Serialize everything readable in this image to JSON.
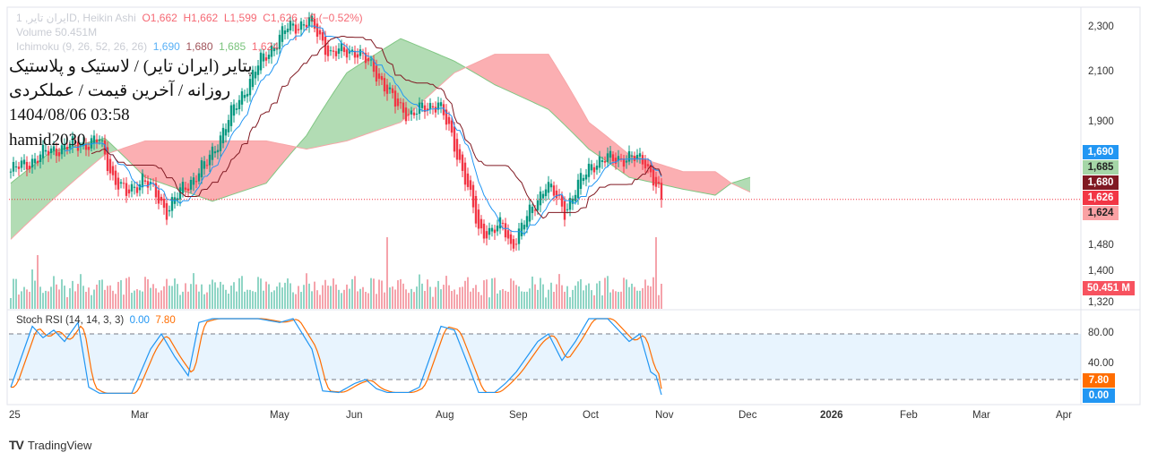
{
  "legend": {
    "symbol_line": "1 ,ایران تایرD, Heikin Ashi",
    "open": "O1,662",
    "high": "H1,662",
    "low": "L1,599",
    "close": "C1,626",
    "change": "−9 (−0.52%)",
    "volume_line": "Volume 50.451M",
    "ichimoku_line": "Ichimoku (9, 26, 52, 26, 26)",
    "ichimoku_values": [
      "1,690",
      "1,680",
      "1,685",
      "1,624"
    ]
  },
  "overlay": {
    "title": "پتایر (ایران تایر) / لاستیک و پلاستیک",
    "subtitle": "روزانه / آخرین قیمت / عملکردی",
    "datetime": "1404/08/06 03:58",
    "author": "hamid2030"
  },
  "price_axis": [
    "2,300",
    "2,100",
    "1,900",
    "1,480",
    "1,400",
    "1,320"
  ],
  "price_tags": [
    {
      "text": "1,690",
      "bg": "#2196f3",
      "fg": "#ffffff"
    },
    {
      "text": "1,685",
      "bg": "#a5d6a7",
      "fg": "#222222"
    },
    {
      "text": "1,680",
      "bg": "#801922",
      "fg": "#ffffff"
    },
    {
      "text": "1,626",
      "bg": "#f23645",
      "fg": "#ffffff"
    },
    {
      "text": "1,624",
      "bg": "#faa1a4",
      "fg": "#222222"
    }
  ],
  "volume_tag": "50.451 M",
  "stoch": {
    "title": "Stoch RSI (14, 14, 3, 3)",
    "k": "0.00",
    "d": "7.80",
    "axis": [
      "80.00",
      "40.00"
    ]
  },
  "time_axis": [
    "25",
    "Mar",
    "May",
    "Jun",
    "Aug",
    "Sep",
    "Oct",
    "Nov",
    "Dec",
    "2026",
    "Feb",
    "Mar",
    "Apr"
  ],
  "brand": "TradingView",
  "colors": {
    "up": "#089981",
    "down": "#f23645",
    "tenkan": "#2196f3",
    "kijun": "#801922",
    "cloud_up": "#a5d6a7",
    "cloud_down": "#faa1a4",
    "k": "#2196f3",
    "d": "#ff6d00"
  },
  "chart_data": {
    "type": "candlestick",
    "title": "پتایر (ایران تایر) Daily Heikin Ashi",
    "ylim": [
      1320,
      2350
    ],
    "y_scale": "log",
    "price_path": [
      [
        0,
        1720
      ],
      [
        16,
        1800
      ],
      [
        33,
        1830
      ],
      [
        38,
        1700
      ],
      [
        43,
        1640
      ],
      [
        49,
        1700
      ],
      [
        58,
        1590
      ],
      [
        64,
        1660
      ],
      [
        73,
        1750
      ],
      [
        83,
        1950
      ],
      [
        93,
        2150
      ],
      [
        103,
        2300
      ],
      [
        111,
        2330
      ],
      [
        119,
        2180
      ],
      [
        128,
        2200
      ],
      [
        136,
        2100
      ],
      [
        143,
        1970
      ],
      [
        149,
        1930
      ],
      [
        159,
        1980
      ],
      [
        169,
        1700
      ],
      [
        174,
        1520
      ],
      [
        183,
        1540
      ],
      [
        186,
        1480
      ],
      [
        193,
        1580
      ],
      [
        199,
        1680
      ],
      [
        206,
        1590
      ],
      [
        216,
        1750
      ],
      [
        226,
        1770
      ],
      [
        236,
        1760
      ],
      [
        242,
        1626
      ]
    ],
    "cloud": [
      [
        0,
        1680,
        1500
      ],
      [
        15,
        1790,
        1620
      ],
      [
        35,
        1840,
        1780
      ],
      [
        50,
        1700,
        1830
      ],
      [
        75,
        1620,
        1830
      ],
      [
        95,
        1680,
        1830
      ],
      [
        110,
        1850,
        1800
      ],
      [
        125,
        2100,
        1830
      ],
      [
        145,
        2250,
        1900
      ],
      [
        165,
        2150,
        2100
      ],
      [
        180,
        2050,
        2180
      ],
      [
        200,
        1950,
        2180
      ],
      [
        215,
        1800,
        1900
      ],
      [
        230,
        1700,
        1780
      ],
      [
        250,
        1660,
        1720
      ],
      [
        262,
        1640,
        1720
      ],
      [
        268,
        1680,
        1680
      ],
      [
        275,
        1700,
        1650
      ]
    ],
    "volume_spikes": [
      [
        140,
        1.0
      ],
      [
        240,
        1.0
      ],
      [
        242,
        0.35
      ],
      [
        10,
        0.75
      ],
      [
        8,
        0.55
      ]
    ],
    "stoch_k": [
      [
        0,
        10
      ],
      [
        8,
        90
      ],
      [
        12,
        75
      ],
      [
        16,
        85
      ],
      [
        20,
        70
      ],
      [
        25,
        95
      ],
      [
        29,
        10
      ],
      [
        33,
        2
      ],
      [
        45,
        2
      ],
      [
        52,
        60
      ],
      [
        56,
        80
      ],
      [
        61,
        50
      ],
      [
        66,
        25
      ],
      [
        70,
        95
      ],
      [
        75,
        100
      ],
      [
        92,
        100
      ],
      [
        100,
        95
      ],
      [
        105,
        100
      ],
      [
        112,
        60
      ],
      [
        116,
        5
      ],
      [
        122,
        3
      ],
      [
        128,
        15
      ],
      [
        132,
        20
      ],
      [
        136,
        8
      ],
      [
        140,
        3
      ],
      [
        148,
        3
      ],
      [
        152,
        10
      ],
      [
        160,
        90
      ],
      [
        165,
        85
      ],
      [
        170,
        40
      ],
      [
        174,
        3
      ],
      [
        180,
        3
      ],
      [
        184,
        15
      ],
      [
        188,
        30
      ],
      [
        196,
        70
      ],
      [
        200,
        80
      ],
      [
        205,
        45
      ],
      [
        210,
        70
      ],
      [
        215,
        100
      ],
      [
        222,
        100
      ],
      [
        226,
        85
      ],
      [
        230,
        70
      ],
      [
        234,
        80
      ],
      [
        238,
        30
      ],
      [
        240,
        25
      ],
      [
        242,
        0
      ]
    ],
    "stoch_bands": [
      20,
      80
    ]
  }
}
